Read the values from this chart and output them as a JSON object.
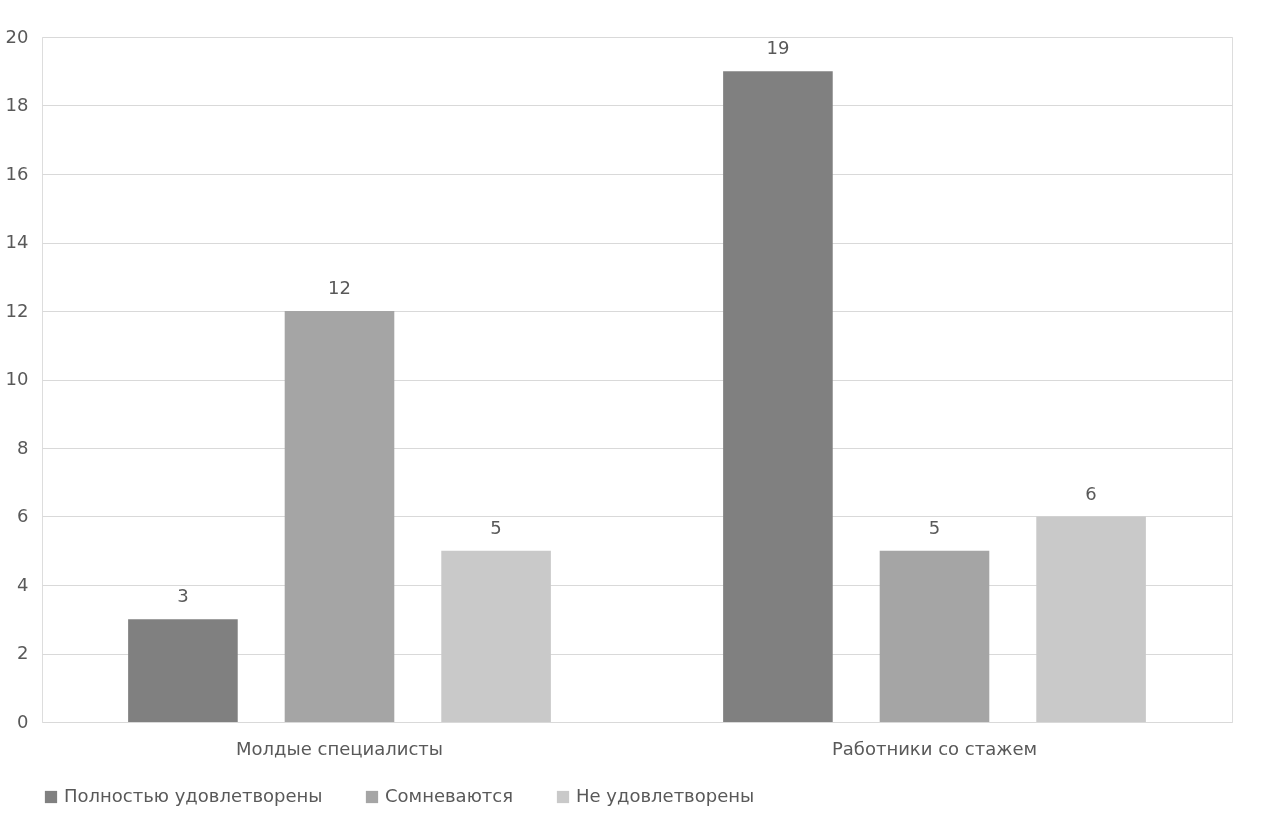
{
  "chart_data": {
    "type": "bar",
    "categories": [
      "Молдые специалисты",
      "Работники со стажем"
    ],
    "series": [
      {
        "name": "Полностью удовлетворены",
        "color": "#808080",
        "values": [
          3,
          19
        ]
      },
      {
        "name": "Сомневаются",
        "color": "#a5a5a5",
        "values": [
          12,
          5
        ]
      },
      {
        "name": "Не удовлетворены",
        "color": "#c9c9c9",
        "values": [
          5,
          6
        ]
      }
    ],
    "ylim": [
      0,
      20
    ],
    "yticks": [
      0,
      2,
      4,
      6,
      8,
      10,
      12,
      14,
      16,
      18,
      20
    ],
    "grid": "y",
    "legend": "bottom",
    "data_labels": true
  }
}
